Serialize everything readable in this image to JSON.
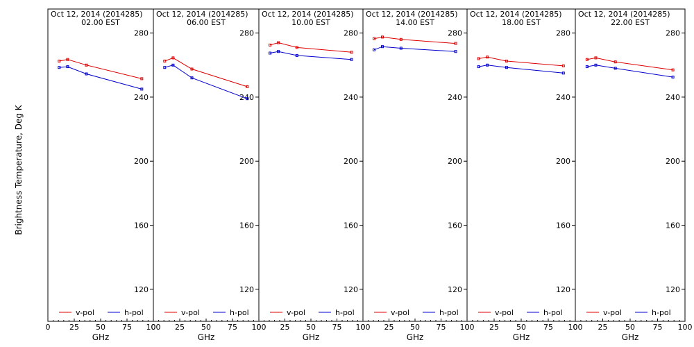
{
  "figure": {
    "ylabel": "Brightness Temperature, Deg K"
  },
  "chart_data": {
    "type": "line",
    "ylabel": "Brightness Temperature, Deg K",
    "xlabel": "GHz",
    "xlim": [
      0,
      100
    ],
    "ylim": [
      100,
      295
    ],
    "xticks": [
      0,
      25,
      50,
      75,
      100
    ],
    "yticks": [
      120,
      160,
      200,
      240,
      280
    ],
    "legend_placement": "bottom",
    "grid": false,
    "x": [
      10.7,
      18.7,
      36.5,
      89.0
    ],
    "series_colors": {
      "v-pol": "#dd0000",
      "h-pol": "#0000cc"
    },
    "panels": [
      {
        "date": "Oct 12, 2014 (2014285)",
        "time": "02.00 EST",
        "series": [
          {
            "name": "v-pol",
            "values": [
              262.5,
              263.5,
              260.0,
              251.5
            ]
          },
          {
            "name": "h-pol",
            "values": [
              258.5,
              259.0,
              254.5,
              245.0
            ]
          }
        ]
      },
      {
        "date": "Oct 12, 2014 (2014285)",
        "time": "06.00 EST",
        "series": [
          {
            "name": "v-pol",
            "values": [
              262.5,
              264.5,
              257.5,
              246.5
            ]
          },
          {
            "name": "h-pol",
            "values": [
              258.5,
              260.0,
              252.0,
              239.0
            ]
          }
        ]
      },
      {
        "date": "Oct 12, 2014 (2014285)",
        "time": "10.00 EST",
        "series": [
          {
            "name": "v-pol",
            "values": [
              272.5,
              274.0,
              271.0,
              268.0
            ]
          },
          {
            "name": "h-pol",
            "values": [
              267.5,
              268.5,
              266.0,
              263.5
            ]
          }
        ]
      },
      {
        "date": "Oct 12, 2014 (2014285)",
        "time": "14.00 EST",
        "series": [
          {
            "name": "v-pol",
            "values": [
              276.5,
              277.5,
              276.0,
              273.5
            ]
          },
          {
            "name": "h-pol",
            "values": [
              269.5,
              271.5,
              270.5,
              268.5
            ]
          }
        ]
      },
      {
        "date": "Oct 12, 2014 (2014285)",
        "time": "18.00 EST",
        "series": [
          {
            "name": "v-pol",
            "values": [
              264.0,
              265.0,
              262.5,
              259.5
            ]
          },
          {
            "name": "h-pol",
            "values": [
              259.0,
              260.0,
              258.5,
              255.0
            ]
          }
        ]
      },
      {
        "date": "Oct 12, 2014 (2014285)",
        "time": "22.00 EST",
        "series": [
          {
            "name": "v-pol",
            "values": [
              263.5,
              264.5,
              262.0,
              257.0
            ]
          },
          {
            "name": "h-pol",
            "values": [
              259.0,
              260.0,
              258.0,
              252.5
            ]
          }
        ]
      }
    ]
  }
}
